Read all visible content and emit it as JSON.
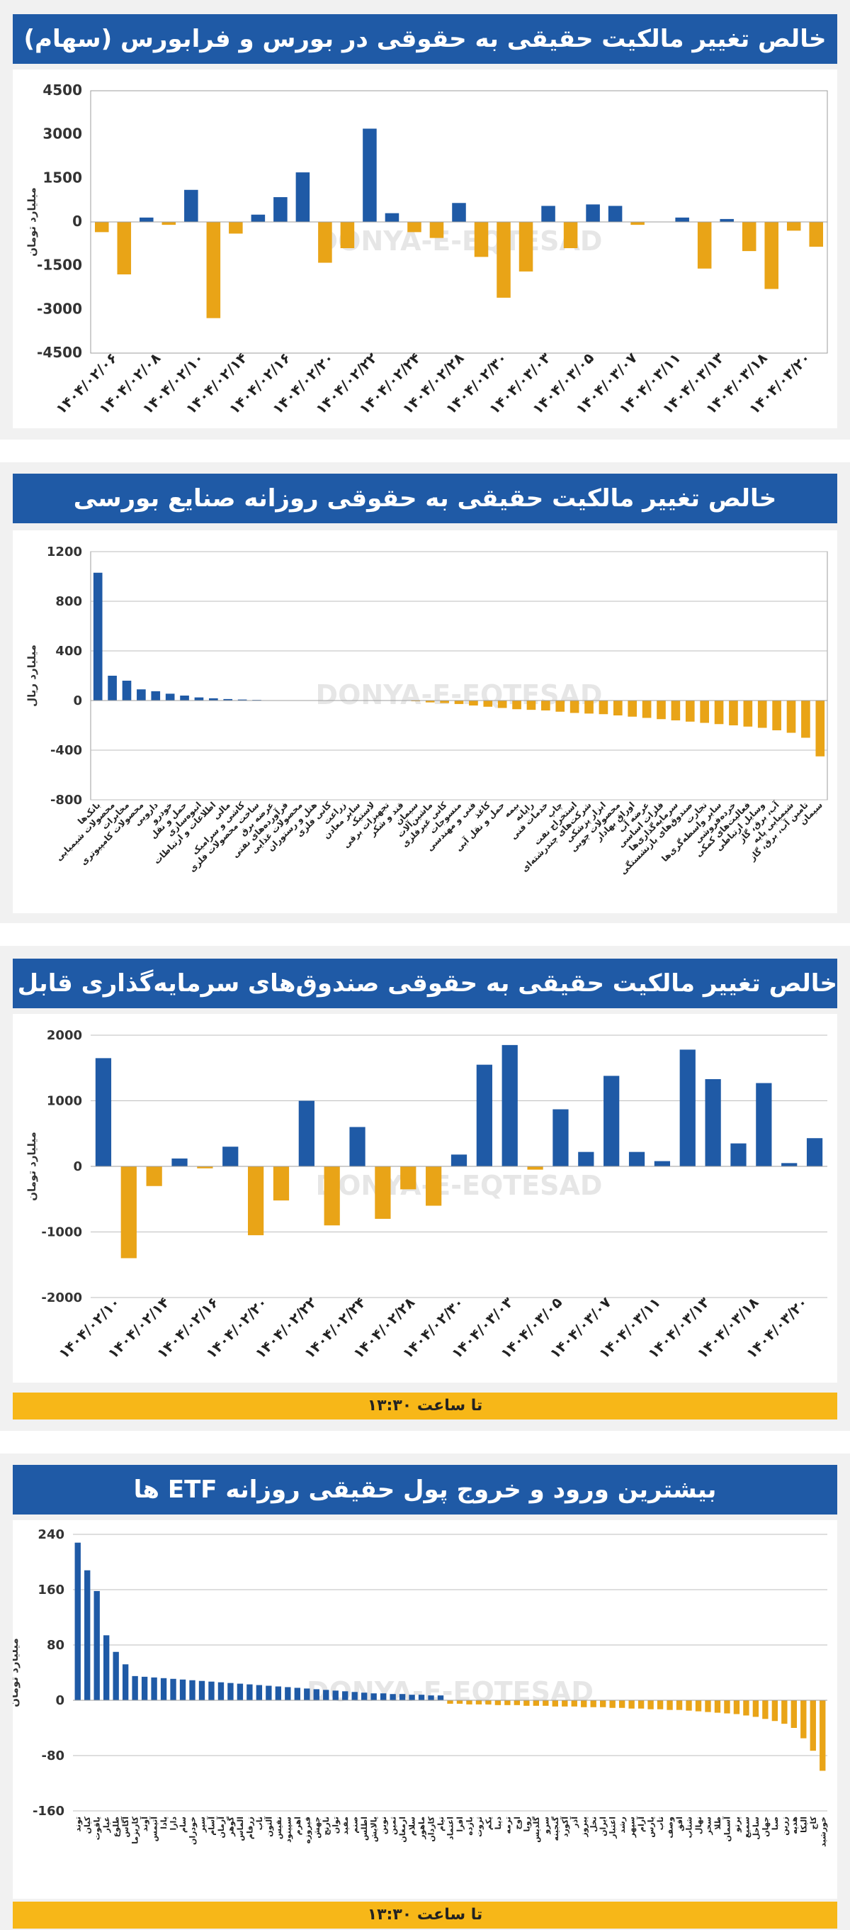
{
  "colors": {
    "positive": "#1f5aa6",
    "negative": "#e9a417",
    "title_bg": "#1f5aa6",
    "time_bg": "#f7b718",
    "grid": "#bdbdbd"
  },
  "watermark": {
    "text": "DONYA-E-EQTESAD"
  },
  "charts": [
    {
      "title": "خالص تغییر مالکیت حقیقی به حقوقی در بورس و فرابورس (سهام)",
      "time_note": "",
      "chart_data": {
        "type": "bar",
        "ylabel": "میلیارد تومان",
        "ylim": [
          -4500,
          4500
        ],
        "yticks": [
          4500,
          3000,
          1500,
          0,
          -1500,
          -3000,
          -4500
        ],
        "grid": false,
        "tick_labels": [
          "۱۴۰۴/۰۲/۰۶",
          "۱۴۰۴/۰۲/۰۸",
          "۱۴۰۴/۰۲/۱۰",
          "۱۴۰۴/۰۲/۱۴",
          "۱۴۰۴/۰۲/۱۶",
          "۱۴۰۴/۰۲/۲۰",
          "۱۴۰۴/۰۲/۲۲",
          "۱۴۰۴/۰۲/۲۴",
          "۱۴۰۴/۰۲/۲۸",
          "۱۴۰۴/۰۲/۳۰",
          "۱۴۰۴/۰۳/۰۳",
          "۱۴۰۴/۰۳/۰۵",
          "۱۴۰۴/۰۳/۰۷",
          "۱۴۰۴/۰۳/۱۱",
          "۱۴۰۴/۰۳/۱۳",
          "۱۴۰۴/۰۳/۱۸",
          "۱۴۰۴/۰۳/۲۰"
        ],
        "values": [
          -350,
          -1800,
          150,
          -100,
          1100,
          -3300,
          -400,
          250,
          850,
          1700,
          -1400,
          -900,
          3200,
          300,
          -350,
          -550,
          650,
          -1200,
          -2600,
          -1700,
          550,
          -900,
          600,
          550,
          -100,
          0,
          150,
          -1600,
          100,
          -1000,
          -2300,
          -300,
          -850
        ]
      }
    },
    {
      "title": "خالص تغییر مالکیت حقیقی به حقوقی روزانه صنایع بورسی",
      "time_note": "",
      "chart_data": {
        "type": "bar",
        "ylabel": "میلیارد ریال",
        "ylim": [
          -800,
          1200
        ],
        "yticks": [
          1200,
          800,
          400,
          0,
          -400,
          -800
        ],
        "grid": true,
        "categories": [
          "بانک‌ها",
          "محصولات شیمیایی",
          "مخابرات",
          "محصولات کامپیوتری",
          "دارویی",
          "خودرو",
          "حمل و نقل",
          "انبوه‌سازی",
          "اطلاعات و ارتباطات",
          "مالی",
          "کاشی و سرامیک",
          "ساخت محصولات فلزی",
          "عرضه برق",
          "فرآورده‌های نفتی",
          "محصولات غذایی",
          "هتل و رستوران",
          "کانی فلزی",
          "زراعت",
          "سایر معادن",
          "لاستیک",
          "تجهیزات برقی",
          "قند و شکر",
          "سیمان",
          "ماشین‌آلات",
          "کانی غیرفلزی",
          "منسوجات",
          "فنی و مهندسی",
          "کاغذ",
          "حمل و نقل آبی",
          "بیمه",
          "رایانه",
          "خدمات فنی",
          "چاپ",
          "استخراج نفت",
          "شرکت‌های چندرشته‌ای",
          "ابزار پزشکی",
          "محصولات چوبی",
          "اوراق بهادار",
          "عرضه آب",
          "فلزات اساسی",
          "سرمایه‌گذاری‌ها",
          "صندوق‌های بازنشستگی",
          "تجارت",
          "سایر واسطه‌گری‌ها",
          "خرده‌فروشی",
          "فعالیت‌های کمکی",
          "وسایل ارتباطی",
          "آب، برق، گاز",
          "شیمیایی پایه",
          "تامین آب، برق، گاز",
          "سیمان"
        ],
        "values": [
          1030,
          200,
          160,
          90,
          75,
          55,
          40,
          25,
          18,
          12,
          8,
          5,
          0,
          0,
          0,
          0,
          0,
          0,
          0,
          0,
          0,
          0,
          -5,
          -15,
          -20,
          -28,
          -40,
          -50,
          -60,
          -70,
          -75,
          -80,
          -90,
          -100,
          -105,
          -110,
          -120,
          -130,
          -140,
          -150,
          -160,
          -170,
          -180,
          -190,
          -200,
          -210,
          -220,
          -240,
          -260,
          -300,
          -450
        ]
      }
    },
    {
      "title": "خالص تغییر مالکیت حقیقی به حقوقی صندوق‌های سرمایه‌گذاری قابل معامله (ETF)",
      "time_note": "تا ساعت ۱۳:۳۰",
      "chart_data": {
        "type": "bar",
        "ylabel": "میلیارد تومان",
        "ylim": [
          -2000,
          2000
        ],
        "yticks": [
          2000,
          1000,
          0,
          -1000,
          -2000
        ],
        "grid": true,
        "tick_labels": [
          "۱۴۰۴/۰۲/۱۰",
          "۱۴۰۴/۰۲/۱۴",
          "۱۴۰۴/۰۲/۱۶",
          "۱۴۰۴/۰۲/۲۰",
          "۱۴۰۴/۰۲/۲۲",
          "۱۴۰۴/۰۲/۲۴",
          "۱۴۰۴/۰۲/۲۸",
          "۱۴۰۴/۰۲/۳۰",
          "۱۴۰۴/۰۳/۰۳",
          "۱۴۰۴/۰۳/۰۵",
          "۱۴۰۴/۰۳/۰۷",
          "۱۴۰۴/۰۳/۱۱",
          "۱۴۰۴/۰۳/۱۳",
          "۱۴۰۴/۰۳/۱۸",
          "۱۴۰۴/۰۳/۲۰"
        ],
        "values": [
          1650,
          -1400,
          -300,
          120,
          -30,
          300,
          -1050,
          -520,
          1000,
          -900,
          600,
          -800,
          -350,
          -600,
          180,
          1550,
          1850,
          -50,
          870,
          220,
          1380,
          220,
          80,
          1780,
          1330,
          350,
          1270,
          50,
          430
        ]
      }
    },
    {
      "title": "بیشترین ورود و خروج پول حقیقی روزانه ETF ها",
      "time_note": "تا ساعت ۱۳:۳۰",
      "chart_data": {
        "type": "bar",
        "ylabel": "میلیارد تومان",
        "ylim": [
          -160,
          240
        ],
        "yticks": [
          240,
          160,
          80,
          0,
          -80,
          -160
        ],
        "grid": true,
        "categories": [
          "توند",
          "کیان",
          "یاقوت",
          "عیار",
          "طلوع",
          "آگاس",
          "کاریزما",
          "آوند",
          "آتیمس",
          "پادا",
          "دارا",
          "سام",
          "خودران",
          "سپر",
          "آسام",
          "آرمان",
          "گوهر",
          "الماس",
          "زرفام",
          "ناب",
          "آلتون",
          "نفیس",
          "سپینود",
          "اهرم",
          "فیروزه",
          "جهش",
          "نارنج",
          "توان",
          "مفید",
          "صنم",
          "اطلس",
          "پالایش",
          "نوین",
          "ثمین",
          "ارمغان",
          "سلام",
          "ماهور",
          "کاردان",
          "تیام",
          "اعتماد",
          "افرا",
          "بازده",
          "ثروت",
          "یکم",
          "دیبا",
          "ترمه",
          "اوج",
          "رویا",
          "گلدیس",
          "سرو",
          "گنجینه",
          "آکورد",
          "آذر",
          "پیروز",
          "نخل",
          "ایران",
          "اعتبار",
          "رشد",
          "سپهر",
          "آرام",
          "پارس",
          "تاب",
          "وصف",
          "افق",
          "شتاب",
          "نهال",
          "سحر",
          "طلا",
          "آسمان",
          "پرتو",
          "سمیع",
          "ساحل",
          "جهان",
          "صبا",
          "زرین",
          "هدیه",
          "الیکا",
          "کاج",
          "خورشید"
        ],
        "values": [
          228,
          188,
          158,
          94,
          70,
          52,
          35,
          34,
          33,
          32,
          31,
          30,
          29,
          28,
          27,
          26,
          25,
          24,
          23,
          22,
          21,
          20,
          19,
          18,
          17,
          16,
          15,
          14,
          13,
          12,
          11,
          10,
          10,
          9,
          9,
          8,
          8,
          7,
          7,
          -5,
          -5,
          -6,
          -6,
          -6,
          -7,
          -7,
          -7,
          -8,
          -8,
          -8,
          -9,
          -9,
          -9,
          -10,
          -10,
          -10,
          -11,
          -11,
          -12,
          -12,
          -13,
          -13,
          -14,
          -14,
          -15,
          -16,
          -17,
          -18,
          -19,
          -20,
          -22,
          -24,
          -27,
          -30,
          -34,
          -40,
          -55,
          -73,
          -102
        ]
      }
    }
  ]
}
